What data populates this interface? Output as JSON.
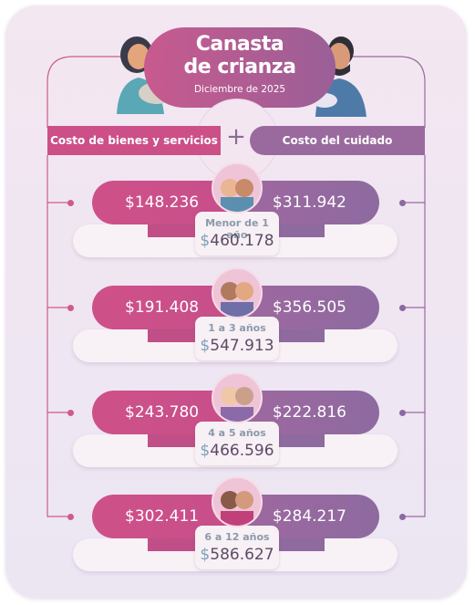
{
  "header": {
    "title_line1": "Canasta",
    "title_line2": "de crianza",
    "subtitle": "Diciembre de 2025"
  },
  "categories": {
    "left": "Costo de bienes y servicios",
    "plus": "+",
    "right": "Costo del cuidado"
  },
  "rows": [
    {
      "bienes": "$148.236",
      "cuidado": "$311.942",
      "age": "Menor de 1 año",
      "currency": "$",
      "total": "460.178"
    },
    {
      "bienes": "$191.408",
      "cuidado": "$356.505",
      "age": "1 a 3 años",
      "currency": "$",
      "total": "547.913"
    },
    {
      "bienes": "$243.780",
      "cuidado": "$222.816",
      "age": "4 a 5 años",
      "currency": "$",
      "total": "466.596"
    },
    {
      "bienes": "$302.411",
      "cuidado": "$284.217",
      "age": "6 a 12 años",
      "currency": "$",
      "total": "586.627"
    }
  ],
  "colors": {
    "pink": "#cc4f88",
    "purple": "#9a6a9e",
    "background": "#f1e7f2"
  }
}
